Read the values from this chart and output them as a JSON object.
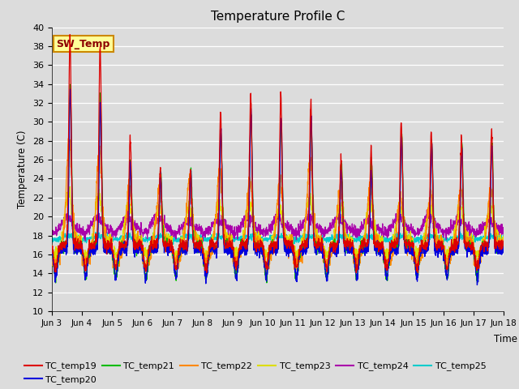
{
  "title": "Temperature Profile C",
  "xlabel": "Time",
  "ylabel": "Temperature (C)",
  "ylim": [
    10,
    40
  ],
  "background_color": "#dcdcdc",
  "plot_bg_color": "#dcdcdc",
  "series_order": [
    "TC_temp19",
    "TC_temp20",
    "TC_temp21",
    "TC_temp22",
    "TC_temp23",
    "TC_temp24",
    "TC_temp25"
  ],
  "series_colors": {
    "TC_temp19": "#dd0000",
    "TC_temp20": "#0000dd",
    "TC_temp21": "#00bb00",
    "TC_temp22": "#ff8800",
    "TC_temp23": "#dddd00",
    "TC_temp24": "#aa00aa",
    "TC_temp25": "#00cccc"
  },
  "sw_temp_annotation": {
    "text": "SW_Temp",
    "fontsize": 9,
    "color": "#8b0000",
    "bgcolor": "#ffff99",
    "edgecolor": "#cc8800"
  },
  "xtick_labels": [
    "Jun 3",
    "Jun 4",
    "Jun 5",
    "Jun 6",
    "Jun 7",
    "Jun 8",
    "Jun 9",
    "Jun 10",
    "Jun 11",
    "Jun 12",
    "Jun 13",
    "Jun 14",
    "Jun 15",
    "Jun 16",
    "Jun 17",
    "Jun 18"
  ],
  "num_days": 15,
  "seed": 42
}
